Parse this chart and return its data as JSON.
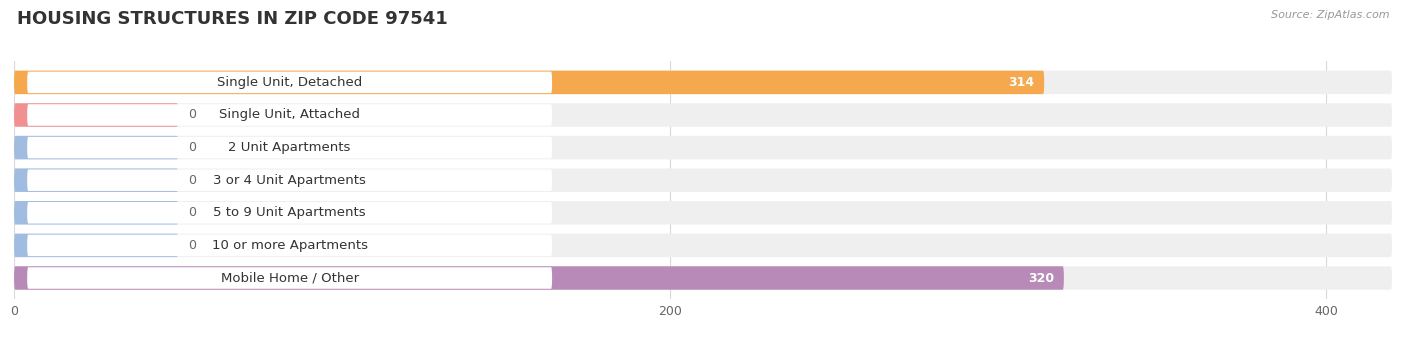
{
  "title": "HOUSING STRUCTURES IN ZIP CODE 97541",
  "source": "Source: ZipAtlas.com",
  "categories": [
    "Single Unit, Detached",
    "Single Unit, Attached",
    "2 Unit Apartments",
    "3 or 4 Unit Apartments",
    "5 to 9 Unit Apartments",
    "10 or more Apartments",
    "Mobile Home / Other"
  ],
  "values": [
    314,
    0,
    0,
    0,
    0,
    0,
    320
  ],
  "bar_colors": [
    "#f5a84e",
    "#f09090",
    "#a0bce0",
    "#a0bce0",
    "#a0bce0",
    "#a0bce0",
    "#b88ab8"
  ],
  "row_bg_colors": [
    "#f0f0f0",
    "#f0f0f0",
    "#f0f0f0",
    "#f0f0f0",
    "#f0f0f0",
    "#f0f0f0",
    "#f0f0f0"
  ],
  "xlim": [
    0,
    420
  ],
  "xticks": [
    0,
    200,
    400
  ],
  "title_fontsize": 13,
  "label_fontsize": 9.5,
  "value_fontsize": 9,
  "background_color": "#ffffff",
  "grid_color": "#d8d8d8",
  "zero_bar_width": 50
}
